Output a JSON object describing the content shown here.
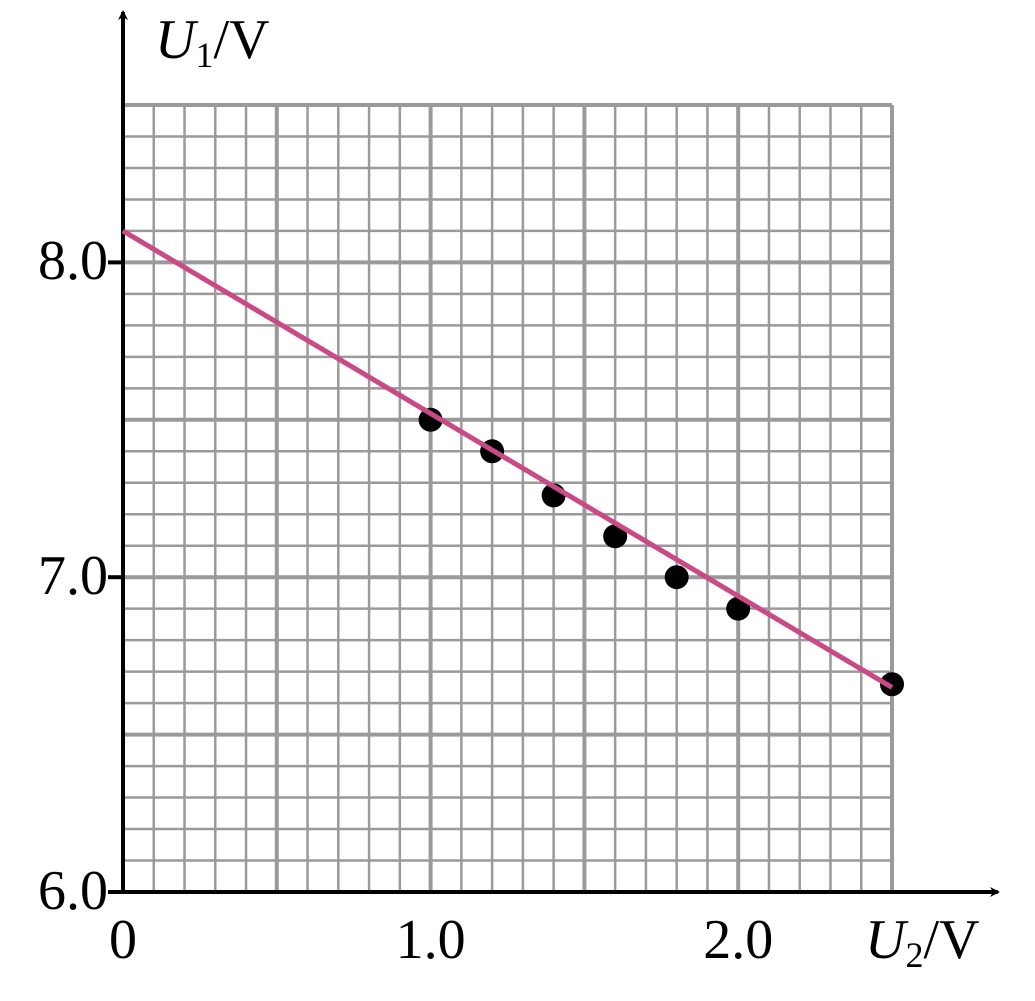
{
  "chart_data": {
    "type": "scatter",
    "y_label": {
      "symbol": "U",
      "subscript": "1",
      "unit": "/V"
    },
    "x_label": {
      "symbol": "U",
      "subscript": "2",
      "unit": "/V"
    },
    "xlim": [
      0,
      2.5
    ],
    "ylim": [
      6.0,
      8.5
    ],
    "xticks": [
      0,
      {
        "value": 1.0,
        "label": "1.0"
      },
      {
        "value": 2.0,
        "label": "2.0"
      }
    ],
    "yticks": [
      {
        "value": 6.0,
        "label": "6.0"
      },
      {
        "value": 7.0,
        "label": "7.0"
      },
      {
        "value": 8.0,
        "label": "8.0"
      }
    ],
    "grid": true,
    "grid_step_x": 0.1,
    "grid_step_y": 0.1,
    "grid_color": "#9a9a9a",
    "series": [
      {
        "type": "scatter",
        "color": "#000000",
        "x": [
          1.0,
          1.2,
          1.4,
          1.6,
          1.8,
          2.0,
          2.5
        ],
        "values": [
          7.5,
          7.4,
          7.26,
          7.13,
          7.0,
          6.9,
          6.66
        ]
      },
      {
        "type": "line",
        "color": "#c94a84",
        "x": [
          0,
          2.5
        ],
        "values": [
          8.1,
          6.65
        ]
      }
    ]
  }
}
